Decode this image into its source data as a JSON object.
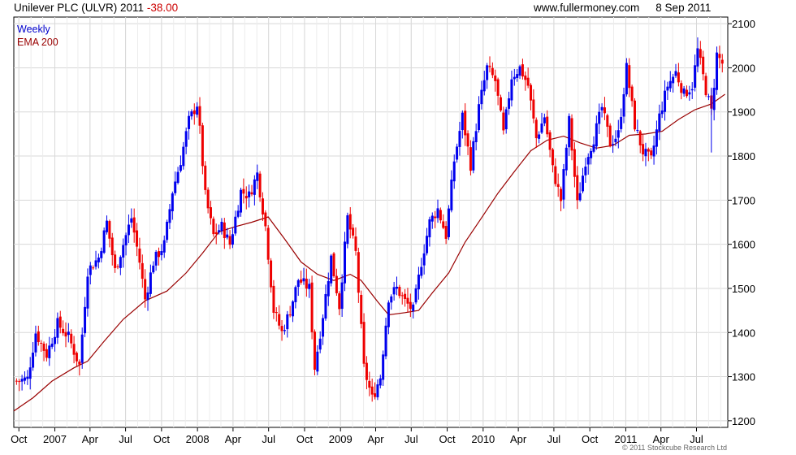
{
  "header": {
    "title": "Unilever PLC (ULVR) 2011",
    "change": "-38.00",
    "site": "www.fullermoney.com",
    "date": "8 Sep 2011"
  },
  "legend": {
    "weekly": "Weekly",
    "ema": "EMA 200",
    "weekly_color": "#0000cc",
    "ema_color": "#990000"
  },
  "copyright": "© 2011 Stockcube Research Ltd",
  "colors": {
    "up": "#0000ee",
    "down": "#ee0000",
    "ema": "#990000",
    "grid": "#d8d8d8"
  },
  "chart_data": {
    "type": "candlestick",
    "x_axis": {
      "ticks": [
        {
          "date": "2006-10-01",
          "label": "Oct"
        },
        {
          "date": "2007-01-01",
          "label": "2007"
        },
        {
          "date": "2007-04-01",
          "label": "Apr"
        },
        {
          "date": "2007-07-01",
          "label": "Jul"
        },
        {
          "date": "2007-10-01",
          "label": "Oct"
        },
        {
          "date": "2008-01-01",
          "label": "2008"
        },
        {
          "date": "2008-04-01",
          "label": "Apr"
        },
        {
          "date": "2008-07-01",
          "label": "Jul"
        },
        {
          "date": "2008-10-01",
          "label": "Oct"
        },
        {
          "date": "2009-01-01",
          "label": "2009"
        },
        {
          "date": "2009-04-01",
          "label": "Apr"
        },
        {
          "date": "2009-07-01",
          "label": "Jul"
        },
        {
          "date": "2009-10-01",
          "label": "Oct"
        },
        {
          "date": "2010-01-01",
          "label": "2010"
        },
        {
          "date": "2010-04-01",
          "label": "Apr"
        },
        {
          "date": "2010-07-01",
          "label": "Jul"
        },
        {
          "date": "2010-10-01",
          "label": "Oct"
        },
        {
          "date": "2011-01-01",
          "label": "2011"
        },
        {
          "date": "2011-04-01",
          "label": "Apr"
        },
        {
          "date": "2011-07-01",
          "label": "Jul"
        }
      ],
      "range": [
        "2006-09-18",
        "2011-09-19"
      ]
    },
    "y_axis": {
      "range": [
        1185,
        2115
      ],
      "ticks": [
        1200,
        1300,
        1400,
        1500,
        1600,
        1700,
        1800,
        1900,
        2000,
        2100
      ],
      "side": "right"
    },
    "grid": true,
    "legend_position": "top-left",
    "series": [
      {
        "name": "Weekly",
        "kind": "ohlc_weekly",
        "anchors": [
          [
            "2006-09-25",
            1290
          ],
          [
            "2006-10-23",
            1295
          ],
          [
            "2006-11-13",
            1400
          ],
          [
            "2006-12-11",
            1350
          ],
          [
            "2007-01-08",
            1420
          ],
          [
            "2007-02-05",
            1390
          ],
          [
            "2007-03-05",
            1325
          ],
          [
            "2007-03-26",
            1540
          ],
          [
            "2007-04-23",
            1570
          ],
          [
            "2007-05-14",
            1650
          ],
          [
            "2007-06-04",
            1540
          ],
          [
            "2007-06-25",
            1600
          ],
          [
            "2007-07-16",
            1660
          ],
          [
            "2007-08-06",
            1560
          ],
          [
            "2007-08-20",
            1475
          ],
          [
            "2007-09-10",
            1560
          ],
          [
            "2007-10-08",
            1600
          ],
          [
            "2007-10-29",
            1720
          ],
          [
            "2007-11-19",
            1790
          ],
          [
            "2007-12-10",
            1880
          ],
          [
            "2008-01-01",
            1920
          ],
          [
            "2008-01-21",
            1710
          ],
          [
            "2008-02-11",
            1620
          ],
          [
            "2008-03-03",
            1640
          ],
          [
            "2008-03-24",
            1600
          ],
          [
            "2008-04-21",
            1720
          ],
          [
            "2008-05-12",
            1710
          ],
          [
            "2008-06-02",
            1760
          ],
          [
            "2008-06-23",
            1640
          ],
          [
            "2008-07-14",
            1450
          ],
          [
            "2008-08-04",
            1400
          ],
          [
            "2008-08-25",
            1450
          ],
          [
            "2008-09-15",
            1520
          ],
          [
            "2008-10-13",
            1500
          ],
          [
            "2008-10-27",
            1320
          ],
          [
            "2008-11-17",
            1440
          ],
          [
            "2008-12-08",
            1570
          ],
          [
            "2008-12-29",
            1460
          ],
          [
            "2009-01-19",
            1660
          ],
          [
            "2009-02-09",
            1580
          ],
          [
            "2009-03-02",
            1320
          ],
          [
            "2009-03-23",
            1250
          ],
          [
            "2009-04-13",
            1300
          ],
          [
            "2009-05-04",
            1480
          ],
          [
            "2009-05-25",
            1500
          ],
          [
            "2009-06-15",
            1470
          ],
          [
            "2009-07-06",
            1450
          ],
          [
            "2009-07-27",
            1560
          ],
          [
            "2009-08-17",
            1650
          ],
          [
            "2009-09-07",
            1680
          ],
          [
            "2009-09-28",
            1620
          ],
          [
            "2009-10-19",
            1790
          ],
          [
            "2009-11-09",
            1890
          ],
          [
            "2009-11-30",
            1780
          ],
          [
            "2009-12-21",
            1910
          ],
          [
            "2010-01-11",
            2000
          ],
          [
            "2010-02-01",
            1970
          ],
          [
            "2010-02-22",
            1850
          ],
          [
            "2010-03-15",
            1980
          ],
          [
            "2010-04-05",
            2000
          ],
          [
            "2010-04-26",
            1960
          ],
          [
            "2010-05-17",
            1840
          ],
          [
            "2010-06-07",
            1890
          ],
          [
            "2010-06-28",
            1770
          ],
          [
            "2010-07-19",
            1700
          ],
          [
            "2010-08-09",
            1880
          ],
          [
            "2010-08-30",
            1690
          ],
          [
            "2010-09-20",
            1790
          ],
          [
            "2010-10-11",
            1840
          ],
          [
            "2010-11-01",
            1910
          ],
          [
            "2010-11-22",
            1830
          ],
          [
            "2010-12-13",
            1850
          ],
          [
            "2011-01-03",
            2000
          ],
          [
            "2011-01-24",
            1870
          ],
          [
            "2011-02-14",
            1810
          ],
          [
            "2011-03-07",
            1790
          ],
          [
            "2011-03-28",
            1890
          ],
          [
            "2011-04-18",
            1960
          ],
          [
            "2011-05-09",
            1990
          ],
          [
            "2011-05-30",
            1940
          ],
          [
            "2011-06-20",
            1960
          ],
          [
            "2011-07-04",
            2040
          ],
          [
            "2011-07-25",
            1950
          ],
          [
            "2011-08-08",
            1900
          ],
          [
            "2011-08-22",
            2030
          ],
          [
            "2011-09-05",
            2010
          ]
        ]
      },
      {
        "name": "EMA 200",
        "kind": "line",
        "points": [
          [
            "2006-09-18",
            1222
          ],
          [
            "2006-11-06",
            1252
          ],
          [
            "2006-12-25",
            1290
          ],
          [
            "2007-02-19",
            1320
          ],
          [
            "2007-03-26",
            1335
          ],
          [
            "2007-05-07",
            1380
          ],
          [
            "2007-06-25",
            1430
          ],
          [
            "2007-08-20",
            1472
          ],
          [
            "2007-10-15",
            1494
          ],
          [
            "2007-12-03",
            1535
          ],
          [
            "2008-01-14",
            1580
          ],
          [
            "2008-02-25",
            1628
          ],
          [
            "2008-04-07",
            1640
          ],
          [
            "2008-05-19",
            1650
          ],
          [
            "2008-06-30",
            1662
          ],
          [
            "2008-08-11",
            1612
          ],
          [
            "2008-09-22",
            1560
          ],
          [
            "2008-11-03",
            1532
          ],
          [
            "2008-12-15",
            1518
          ],
          [
            "2009-01-26",
            1532
          ],
          [
            "2009-02-23",
            1518
          ],
          [
            "2009-04-06",
            1470
          ],
          [
            "2009-05-04",
            1440
          ],
          [
            "2009-06-15",
            1445
          ],
          [
            "2009-07-20",
            1450
          ],
          [
            "2009-08-24",
            1490
          ],
          [
            "2009-10-05",
            1535
          ],
          [
            "2009-11-16",
            1605
          ],
          [
            "2009-12-28",
            1660
          ],
          [
            "2010-02-08",
            1716
          ],
          [
            "2010-03-22",
            1765
          ],
          [
            "2010-05-03",
            1812
          ],
          [
            "2010-06-14",
            1836
          ],
          [
            "2010-07-26",
            1845
          ],
          [
            "2010-09-06",
            1830
          ],
          [
            "2010-10-18",
            1818
          ],
          [
            "2010-11-29",
            1824
          ],
          [
            "2011-01-10",
            1847
          ],
          [
            "2011-02-21",
            1850
          ],
          [
            "2011-04-04",
            1856
          ],
          [
            "2011-05-16",
            1883
          ],
          [
            "2011-06-27",
            1905
          ],
          [
            "2011-08-08",
            1918
          ],
          [
            "2011-09-12",
            1940
          ]
        ]
      }
    ]
  }
}
